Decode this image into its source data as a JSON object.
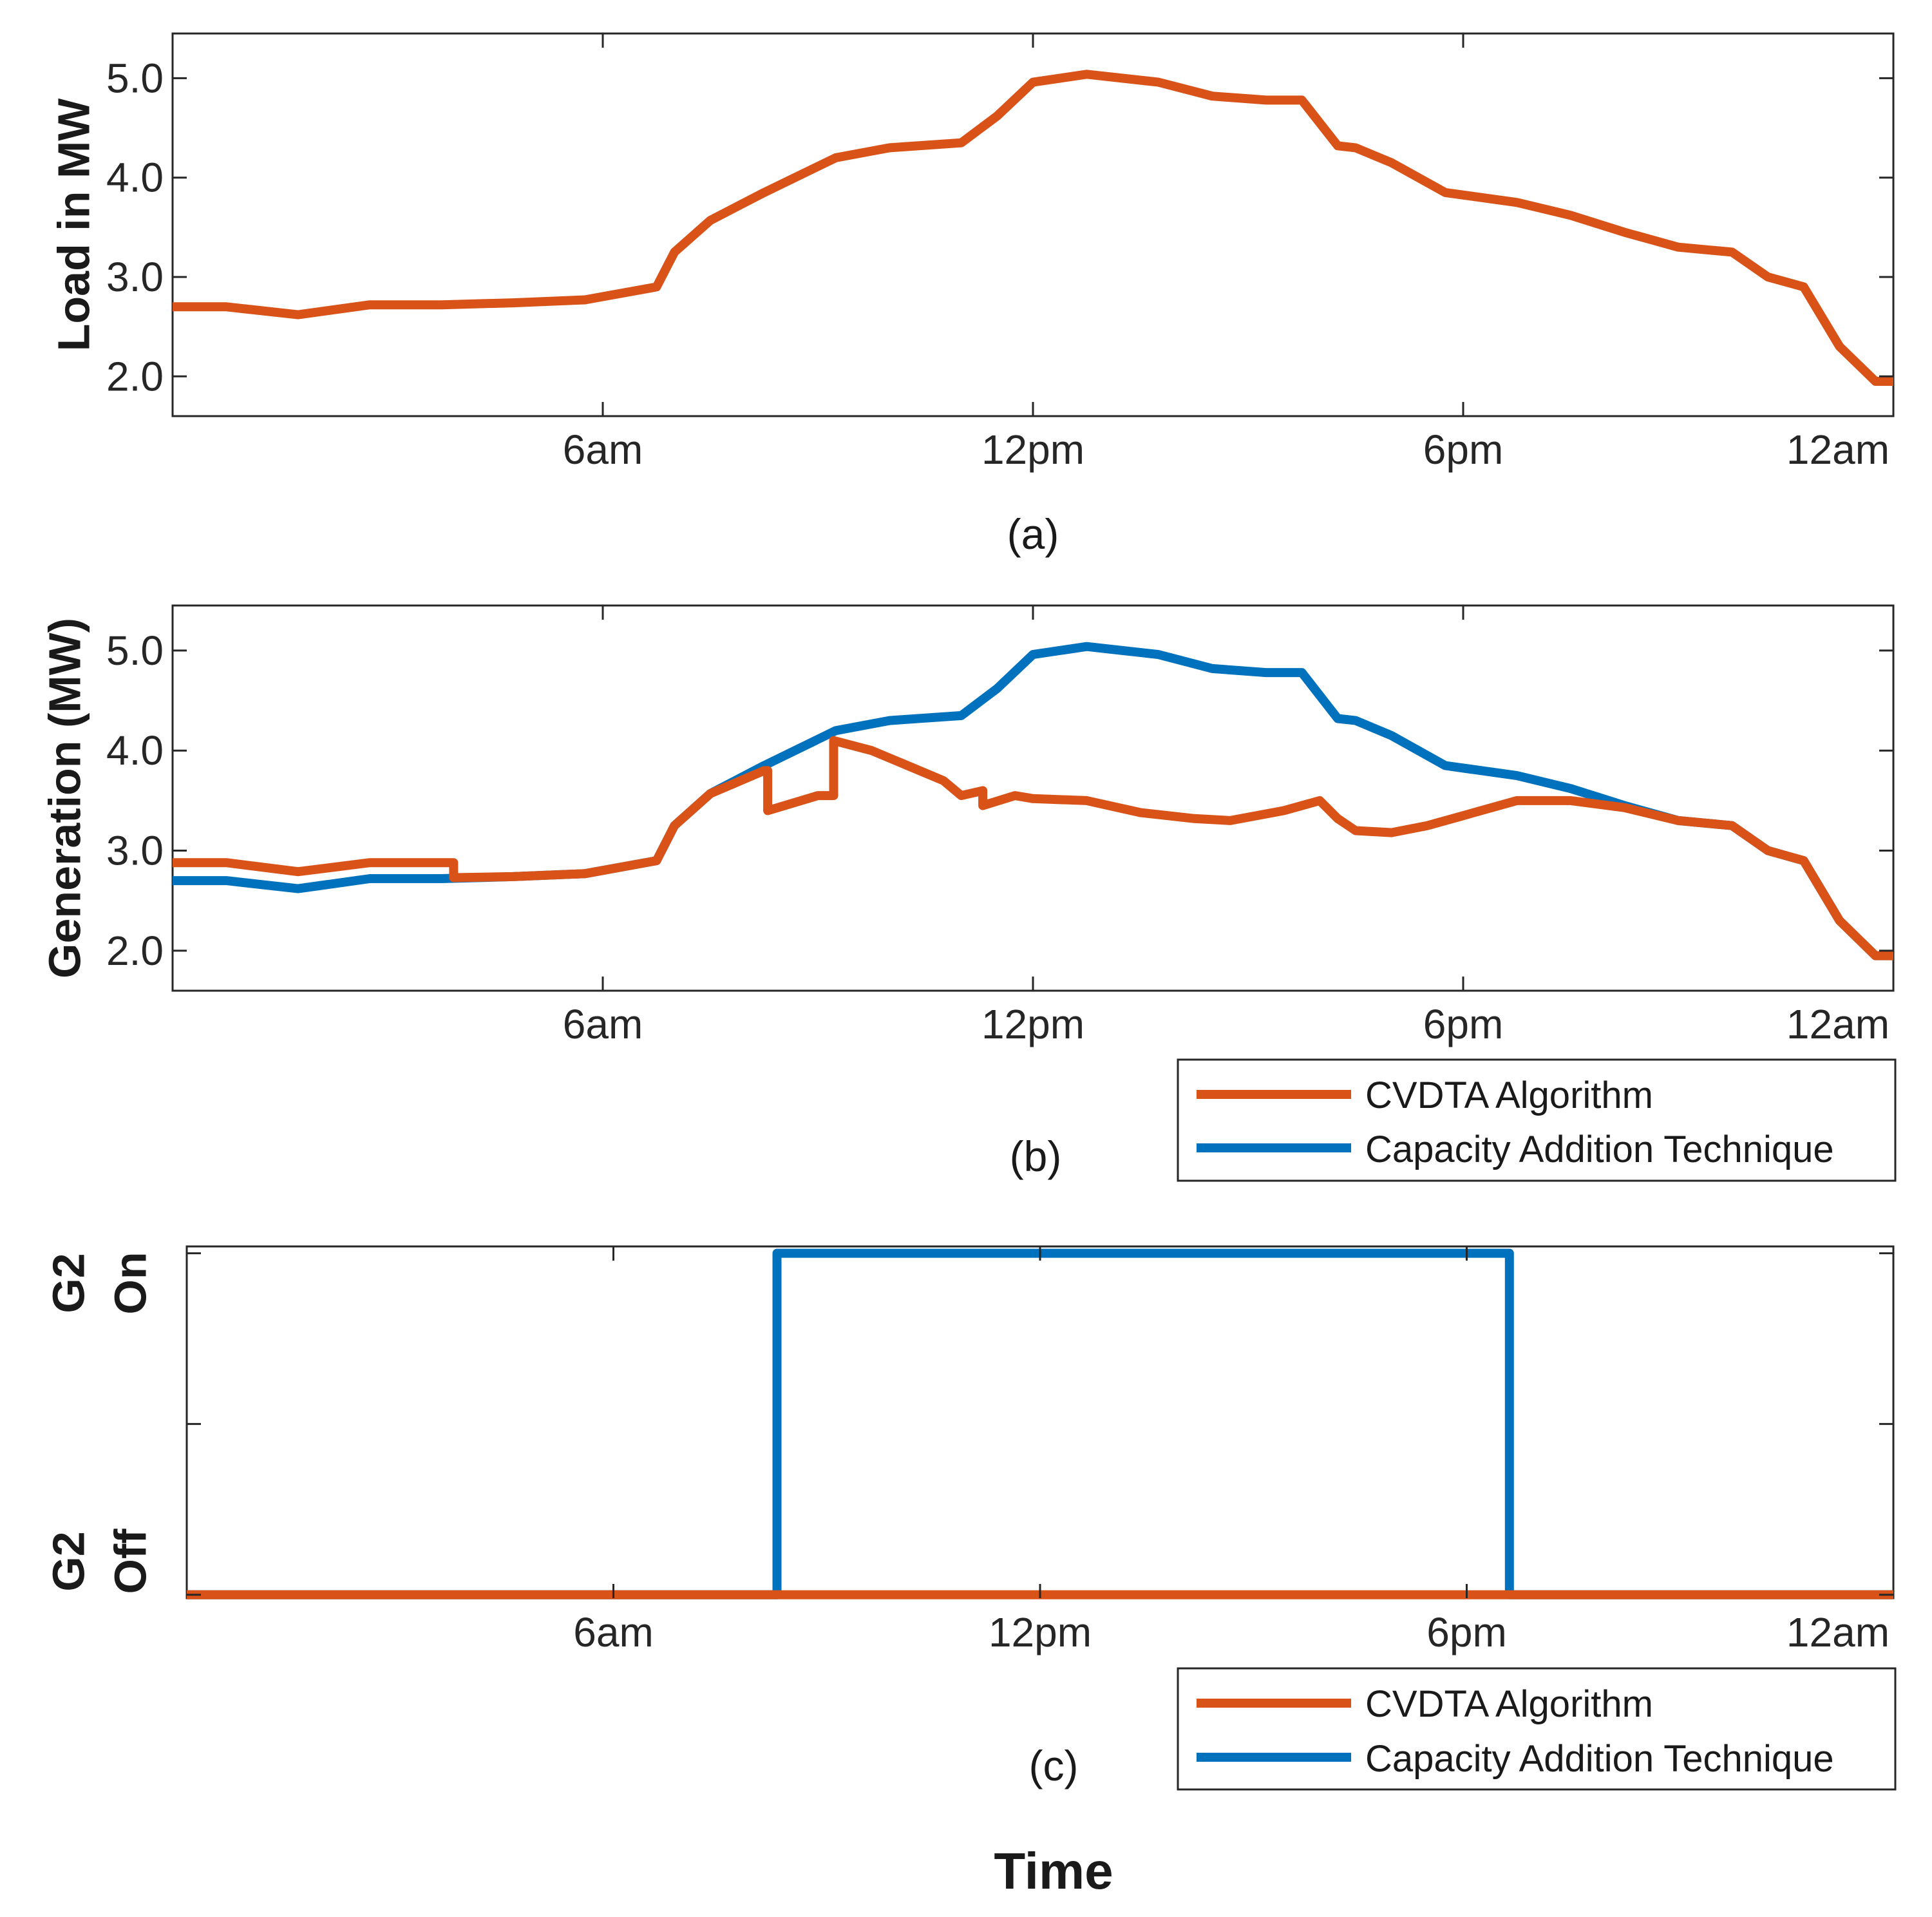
{
  "colors": {
    "cvdta": "#D95319",
    "cat": "#0072BD",
    "axis": "#262626"
  },
  "chart_data": [
    {
      "id": "a",
      "type": "line",
      "caption": "(a)",
      "ylabel": "Load in MW",
      "xlabel": "",
      "xlim": [
        0,
        24
      ],
      "ylim": [
        1.6,
        5.45
      ],
      "xticks": [
        6,
        12,
        18,
        24
      ],
      "xtick_labels": [
        "6am",
        "12pm",
        "6pm",
        "12am"
      ],
      "yticks": [
        2,
        3,
        4,
        5
      ],
      "ytick_labels": [
        "2.0",
        "3.0",
        "4.0",
        "5.0"
      ],
      "grid": false,
      "series": [
        {
          "name": "Load",
          "color_key": "cvdta",
          "x": [
            0,
            0.75,
            1.75,
            2.75,
            3.75,
            4.75,
            5.75,
            6.75,
            7.0,
            7.5,
            8.25,
            9.25,
            10.0,
            11.0,
            11.5,
            12.0,
            12.75,
            13.75,
            14.5,
            15.25,
            15.75,
            16.25,
            16.5,
            17.0,
            17.75,
            18.75,
            19.5,
            20.25,
            21.0,
            21.75,
            22.25,
            22.75,
            23.25,
            23.75,
            24.0
          ],
          "y": [
            2.7,
            2.7,
            2.62,
            2.72,
            2.72,
            2.74,
            2.77,
            2.9,
            3.25,
            3.57,
            3.85,
            4.2,
            4.3,
            4.35,
            4.62,
            4.96,
            5.04,
            4.96,
            4.82,
            4.78,
            4.78,
            4.32,
            4.3,
            4.15,
            3.85,
            3.75,
            3.62,
            3.45,
            3.3,
            3.25,
            3.0,
            2.9,
            2.3,
            1.95,
            1.95
          ]
        }
      ]
    },
    {
      "id": "b",
      "type": "line",
      "caption": "(b)",
      "ylabel": "Generation (MW)",
      "xlabel": "",
      "xlim": [
        0,
        24
      ],
      "ylim": [
        1.6,
        5.45
      ],
      "xticks": [
        6,
        12,
        18,
        24
      ],
      "xtick_labels": [
        "6am",
        "12pm",
        "6pm",
        "12am"
      ],
      "yticks": [
        2,
        3,
        4,
        5
      ],
      "ytick_labels": [
        "2.0",
        "3.0",
        "4.0",
        "5.0"
      ],
      "grid": false,
      "legend": {
        "position": "outside-bottom-right",
        "entries": [
          "CVDTA  Algorithm",
          "Capacity Addition Technique"
        ]
      },
      "series": [
        {
          "name": "Capacity Addition Technique",
          "color_key": "cat",
          "x": [
            0,
            0.75,
            1.75,
            2.75,
            3.75,
            4.75,
            5.75,
            6.75,
            7.0,
            7.5,
            8.25,
            9.25,
            10.0,
            11.0,
            11.5,
            12.0,
            12.75,
            13.75,
            14.5,
            15.25,
            15.75,
            16.25,
            16.5,
            17.0,
            17.75,
            18.75,
            19.5,
            20.25,
            21.0,
            21.75,
            22.25,
            22.75,
            23.25,
            23.75,
            24.0
          ],
          "y": [
            2.7,
            2.7,
            2.62,
            2.72,
            2.72,
            2.74,
            2.77,
            2.9,
            3.25,
            3.57,
            3.85,
            4.2,
            4.3,
            4.35,
            4.62,
            4.96,
            5.04,
            4.96,
            4.82,
            4.78,
            4.78,
            4.32,
            4.3,
            4.15,
            3.85,
            3.75,
            3.62,
            3.45,
            3.3,
            3.25,
            3.0,
            2.9,
            2.3,
            1.95,
            1.95
          ]
        },
        {
          "name": "CVDTA  Algorithm",
          "color_key": "cvdta",
          "x": [
            0,
            0.75,
            1.75,
            2.75,
            3.75,
            3.92,
            3.92,
            4.75,
            5.75,
            6.75,
            7.0,
            7.5,
            8.25,
            8.3,
            8.3,
            9.0,
            9.22,
            9.22,
            9.75,
            10.25,
            10.75,
            11.0,
            11.3,
            11.3,
            11.75,
            12.0,
            12.75,
            13.5,
            14.25,
            14.75,
            15.5,
            16.0,
            16.25,
            16.5,
            17.0,
            17.5,
            18.0,
            18.75,
            19.5,
            20.25,
            21.0,
            21.75,
            22.25,
            22.75,
            23.25,
            23.75,
            24.0
          ],
          "y": [
            2.88,
            2.88,
            2.79,
            2.88,
            2.88,
            2.88,
            2.73,
            2.74,
            2.77,
            2.9,
            3.25,
            3.57,
            3.8,
            3.8,
            3.4,
            3.55,
            3.55,
            4.1,
            4.0,
            3.85,
            3.7,
            3.55,
            3.6,
            3.45,
            3.55,
            3.52,
            3.5,
            3.38,
            3.32,
            3.3,
            3.4,
            3.5,
            3.32,
            3.2,
            3.18,
            3.25,
            3.35,
            3.5,
            3.5,
            3.43,
            3.3,
            3.25,
            3.0,
            2.9,
            2.3,
            1.95,
            1.95
          ]
        }
      ]
    },
    {
      "id": "c",
      "type": "line",
      "caption": "(c)",
      "ylabel_top": [
        "G2",
        "On"
      ],
      "ylabel_bottom": [
        "G2",
        "Off"
      ],
      "xlabel": "Time",
      "xlim": [
        0,
        24
      ],
      "ylim": [
        -0.01,
        1.02
      ],
      "xticks": [
        6,
        12,
        18,
        24
      ],
      "xtick_labels": [
        "6am",
        "12pm",
        "6pm",
        "12am"
      ],
      "yticks": [
        0,
        0.5,
        1
      ],
      "grid": false,
      "legend": {
        "position": "outside-bottom-right",
        "entries": [
          "CVDTA  Algorithm",
          "Capacity Addition Technique"
        ]
      },
      "series": [
        {
          "name": "Capacity Addition Technique",
          "color_key": "cat",
          "x": [
            0,
            8.3,
            8.3,
            18.6,
            18.6,
            24
          ],
          "y": [
            0,
            0,
            1,
            1,
            0,
            0
          ]
        },
        {
          "name": "CVDTA  Algorithm",
          "color_key": "cvdta",
          "x": [
            0,
            24
          ],
          "y": [
            0,
            0
          ]
        }
      ]
    }
  ]
}
